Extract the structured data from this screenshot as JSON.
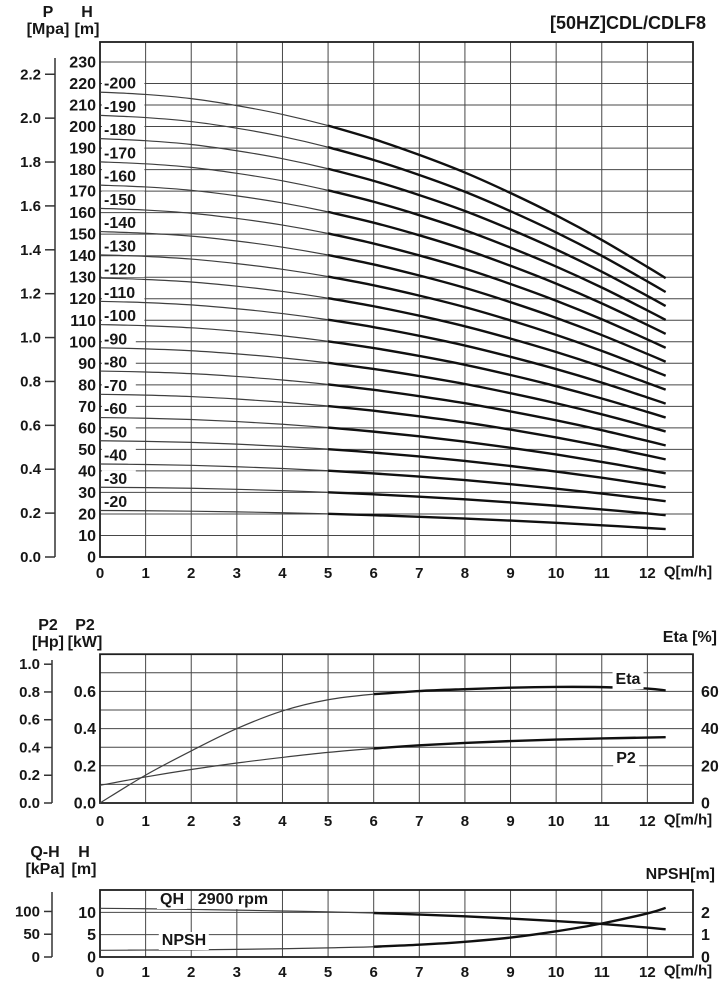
{
  "window": {
    "title": "[50HZ]CDL/CDLF8"
  },
  "colors": {
    "paper": "#ffffff",
    "ink": "#161616",
    "grid": "#474747",
    "border": "#1f1f1f",
    "curve_thin": "#3f3f3f",
    "curve_bold": "#101010"
  },
  "chart_data": [
    {
      "id": "head-curves",
      "type": "line",
      "title": "[50HZ]CDL/CDLF8",
      "xlabel": "Q[m/h]",
      "x_ticks": [
        0,
        1,
        2,
        3,
        4,
        5,
        6,
        7,
        8,
        9,
        10,
        11,
        12
      ],
      "xlim": [
        0,
        13
      ],
      "grid": true,
      "y_axes": {
        "pressure": {
          "name": "P",
          "unit": "[Mpa]",
          "ticks": [
            "2.2",
            "2.0",
            "1.8",
            "1.6",
            "1.4",
            "1.2",
            "1.0",
            "0.8",
            "0.6",
            "0.4",
            "0.2",
            "0.0"
          ]
        },
        "head": {
          "name": "H",
          "unit": "[m]",
          "lim": [
            0,
            239
          ],
          "ticks": [
            230,
            220,
            210,
            200,
            190,
            180,
            170,
            160,
            150,
            140,
            130,
            120,
            110,
            100,
            90,
            80,
            70,
            60,
            50,
            40,
            30,
            20,
            10,
            0
          ]
        }
      },
      "q": [
        0,
        1,
        2,
        3,
        4,
        5,
        6,
        7,
        8,
        9,
        10,
        11,
        12,
        12.4
      ],
      "head_ratio": [
        1,
        0.995,
        0.986,
        0.971,
        0.952,
        0.928,
        0.899,
        0.865,
        0.827,
        0.783,
        0.735,
        0.682,
        0.624,
        0.6
      ],
      "bold_from_index": 5,
      "series": [
        {
          "label": "-20",
          "h0_m": 21.6
        },
        {
          "label": "-30",
          "h0_m": 32.4
        },
        {
          "label": "-40",
          "h0_m": 43.2
        },
        {
          "label": "-50",
          "h0_m": 54.0
        },
        {
          "label": "-60",
          "h0_m": 64.8
        },
        {
          "label": "-70",
          "h0_m": 75.6
        },
        {
          "label": "-80",
          "h0_m": 86.4
        },
        {
          "label": "-90",
          "h0_m": 97.2
        },
        {
          "label": "-100",
          "h0_m": 108.0
        },
        {
          "label": "-110",
          "h0_m": 118.8
        },
        {
          "label": "-120",
          "h0_m": 129.6
        },
        {
          "label": "-130",
          "h0_m": 140.4
        },
        {
          "label": "-140",
          "h0_m": 151.2
        },
        {
          "label": "-150",
          "h0_m": 162.0
        },
        {
          "label": "-160",
          "h0_m": 172.8
        },
        {
          "label": "-170",
          "h0_m": 183.6
        },
        {
          "label": "-180",
          "h0_m": 194.4
        },
        {
          "label": "-190",
          "h0_m": 205.2
        },
        {
          "label": "-200",
          "h0_m": 216.0
        }
      ]
    },
    {
      "id": "power-efficiency",
      "type": "line",
      "xlabel": "Q[m/h]",
      "x_ticks": [
        0,
        1,
        2,
        3,
        4,
        5,
        6,
        7,
        8,
        9,
        10,
        11,
        12
      ],
      "xlim": [
        0,
        13
      ],
      "grid": true,
      "y_axes": {
        "power_hp": {
          "name": "P2",
          "unit": "[Hp]",
          "ticks": [
            "1.0",
            "0.8",
            "0.6",
            "0.4",
            "0.2",
            "0.0"
          ]
        },
        "power_kw": {
          "name": "P2",
          "unit": "[kW]",
          "ticks": [
            "0.6",
            "0.4",
            "0.2",
            "0.0"
          ],
          "lim": [
            0,
            0.8
          ]
        },
        "eta": {
          "name": "Eta [%]",
          "ticks": [
            60,
            40,
            20,
            0
          ],
          "lim": [
            0,
            80
          ]
        }
      },
      "q": [
        0,
        1,
        2,
        3,
        4,
        5,
        6,
        7,
        8,
        9,
        10,
        11,
        12,
        12.4
      ],
      "bold_from_index": 6,
      "series": [
        {
          "label": "Eta",
          "axis": "eta",
          "values": [
            0,
            15,
            28,
            40,
            49.5,
            55.5,
            58.5,
            60.2,
            61.2,
            62,
            62.4,
            62.3,
            61.5,
            60.5
          ]
        },
        {
          "label": "P2",
          "axis": "power_kw",
          "values": [
            0.095,
            0.14,
            0.18,
            0.215,
            0.245,
            0.272,
            0.293,
            0.31,
            0.323,
            0.333,
            0.341,
            0.347,
            0.352,
            0.354
          ]
        }
      ]
    },
    {
      "id": "qh-npsh",
      "type": "line",
      "xlabel": "Q[m/h]",
      "x_ticks": [
        0,
        1,
        2,
        3,
        4,
        5,
        6,
        7,
        8,
        9,
        10,
        11,
        12
      ],
      "xlim": [
        0,
        13
      ],
      "grid": true,
      "annotation_rpm": "2900 rpm",
      "y_axes": {
        "pressure_kpa": {
          "name": "Q-H",
          "unit": "[kPa]",
          "ticks": [
            100,
            50,
            0
          ]
        },
        "head": {
          "name": "H",
          "unit": "[m]",
          "ticks": [
            10,
            5,
            0
          ],
          "lim": [
            0,
            15
          ]
        },
        "npsh": {
          "name": "NPSH[m]",
          "ticks": [
            2,
            1,
            0
          ],
          "lim": [
            0,
            3
          ]
        }
      },
      "q": [
        0,
        1,
        2,
        3,
        4,
        5,
        6,
        7,
        8,
        9,
        10,
        11,
        12,
        12.4
      ],
      "bold_from_index": 6,
      "series": [
        {
          "label": "QH",
          "axis": "head",
          "values": [
            10.9,
            10.8,
            10.65,
            10.5,
            10.3,
            10.1,
            9.85,
            9.5,
            9.1,
            8.6,
            8.05,
            7.4,
            6.6,
            6.2
          ]
        },
        {
          "label": "NPSH",
          "axis": "npsh",
          "values": [
            0.3,
            0.31,
            0.32,
            0.34,
            0.37,
            0.41,
            0.46,
            0.55,
            0.68,
            0.87,
            1.15,
            1.5,
            1.95,
            2.2
          ]
        }
      ]
    }
  ]
}
